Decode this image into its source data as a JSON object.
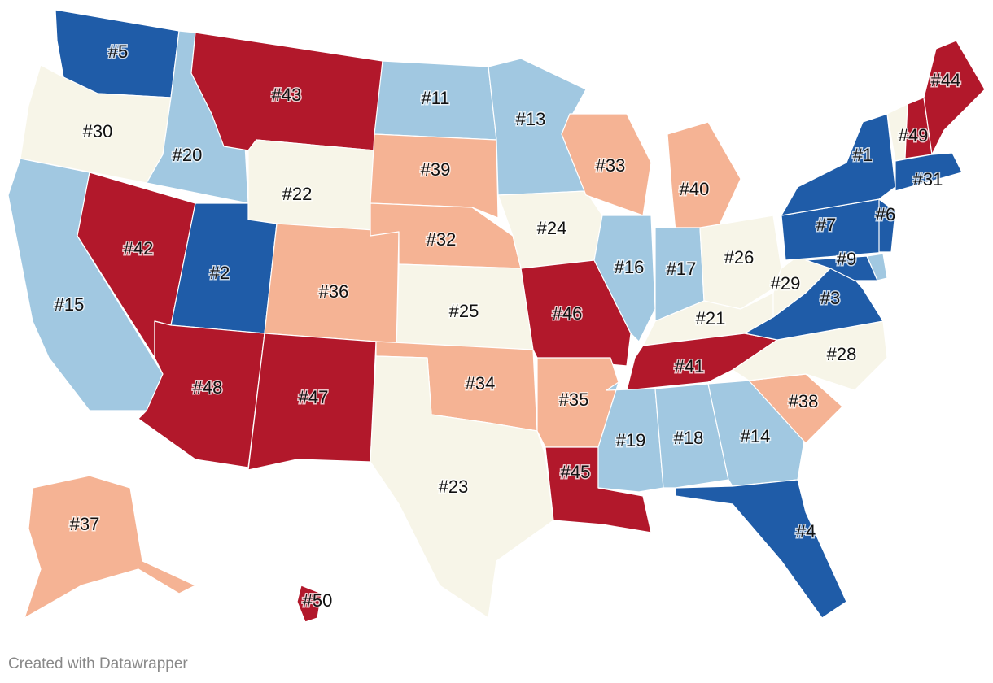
{
  "map": {
    "states": [
      {
        "label": "#5",
        "value": 5,
        "color": "#1f5ca8"
      },
      {
        "label": "#30",
        "value": 30,
        "color": "#f7f5e8"
      },
      {
        "label": "#20",
        "value": 20,
        "color": "#a1c8e1"
      },
      {
        "label": "#43",
        "value": 43,
        "color": "#b2182b"
      },
      {
        "label": "#22",
        "value": 22,
        "color": "#f7f5e8"
      },
      {
        "label": "#15",
        "value": 15,
        "color": "#a1c8e1"
      },
      {
        "label": "#42",
        "value": 42,
        "color": "#b2182b"
      },
      {
        "label": "#2",
        "value": 2,
        "color": "#1f5ca8"
      },
      {
        "label": "#48",
        "value": 48,
        "color": "#b2182b"
      },
      {
        "label": "#36",
        "value": 36,
        "color": "#f5b394"
      },
      {
        "label": "#47",
        "value": 47,
        "color": "#b2182b"
      },
      {
        "label": "#11",
        "value": 11,
        "color": "#a1c8e1"
      },
      {
        "label": "#39",
        "value": 39,
        "color": "#f5b394"
      },
      {
        "label": "#32",
        "value": 32,
        "color": "#f5b394"
      },
      {
        "label": "#25",
        "value": 25,
        "color": "#f7f5e8"
      },
      {
        "label": "#34",
        "value": 34,
        "color": "#f5b394"
      },
      {
        "label": "#23",
        "value": 23,
        "color": "#f7f5e8"
      },
      {
        "label": "#13",
        "value": 13,
        "color": "#a1c8e1"
      },
      {
        "label": "#24",
        "value": 24,
        "color": "#f7f5e8"
      },
      {
        "label": "#46",
        "value": 46,
        "color": "#b2182b"
      },
      {
        "label": "#35",
        "value": 35,
        "color": "#f5b394"
      },
      {
        "label": "#45",
        "value": 45,
        "color": "#b2182b"
      },
      {
        "label": "#33",
        "value": 33,
        "color": "#f5b394"
      },
      {
        "label": "#16",
        "value": 16,
        "color": "#a1c8e1"
      },
      {
        "label": "#40",
        "value": 40,
        "color": "#f5b394"
      },
      {
        "label": "#17",
        "value": 17,
        "color": "#a1c8e1"
      },
      {
        "label": "#26",
        "value": 26,
        "color": "#f7f5e8"
      },
      {
        "label": "#21",
        "value": 21,
        "color": "#f7f5e8"
      },
      {
        "label": "#41",
        "value": 41,
        "color": "#b2182b"
      },
      {
        "label": "#19",
        "value": 19,
        "color": "#a1c8e1"
      },
      {
        "label": "#18",
        "value": 18,
        "color": "#a1c8e1"
      },
      {
        "label": "#14",
        "value": 14,
        "color": "#a1c8e1"
      },
      {
        "label": "#4",
        "value": 4,
        "color": "#1f5ca8"
      },
      {
        "label": "#38",
        "value": 38,
        "color": "#f5b394"
      },
      {
        "label": "#28",
        "value": 28,
        "color": "#f7f5e8"
      },
      {
        "label": "#3",
        "value": 3,
        "color": "#1f5ca8"
      },
      {
        "label": "#29",
        "value": 29,
        "color": "#f7f5e8"
      },
      {
        "label": "#7",
        "value": 7,
        "color": "#1f5ca8"
      },
      {
        "label": "#1",
        "value": 1,
        "color": "#1f5ca8"
      },
      {
        "label": "#6",
        "value": 6,
        "color": "#1f5ca8"
      },
      {
        "label": "#9",
        "value": 9,
        "color": "#1f5ca8"
      },
      {
        "label": "#49",
        "value": 49,
        "color": "#b2182b"
      },
      {
        "label": "#31",
        "value": 31,
        "color": "#1f5ca8"
      },
      {
        "label": "#44",
        "value": 44,
        "color": "#b2182b"
      },
      {
        "label": "#37",
        "value": 37,
        "color": "#f5b394"
      },
      {
        "label": "#50",
        "value": 50,
        "color": "#b2182b"
      }
    ]
  },
  "footer": "Created with Datawrapper"
}
